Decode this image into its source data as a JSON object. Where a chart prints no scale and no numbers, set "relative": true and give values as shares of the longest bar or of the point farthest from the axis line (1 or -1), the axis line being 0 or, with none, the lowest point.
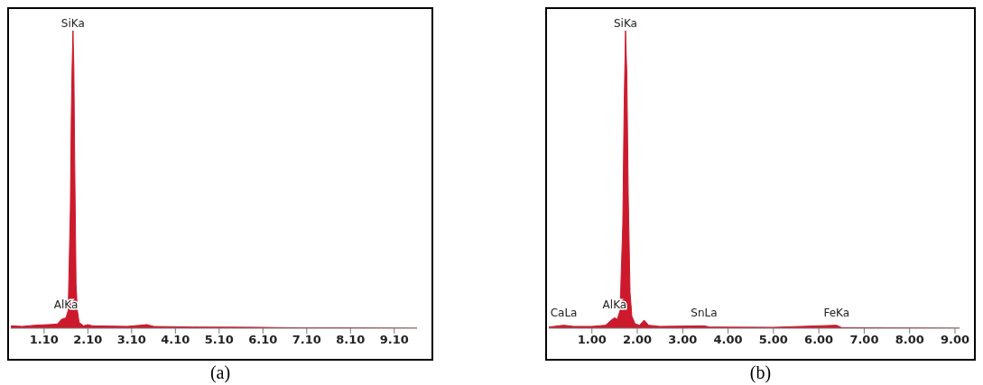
{
  "chart_data": [
    {
      "type": "area",
      "title": "(a)",
      "relative": true,
      "xlim": [
        0.34,
        9.62
      ],
      "xticks": [
        {
          "value": 1.1,
          "label": "1.10"
        },
        {
          "value": 2.1,
          "label": "2.10"
        },
        {
          "value": 3.1,
          "label": "3.10"
        },
        {
          "value": 4.1,
          "label": "4.10"
        },
        {
          "value": 5.1,
          "label": "5.10"
        },
        {
          "value": 6.1,
          "label": "6.10"
        },
        {
          "value": 7.1,
          "label": "7.10"
        },
        {
          "value": 8.1,
          "label": "8.10"
        },
        {
          "value": 9.1,
          "label": "9.10"
        }
      ],
      "series": [
        {
          "color": "#cc1a2c",
          "x": [
            0.34,
            0.6,
            0.9,
            1.2,
            1.4,
            1.5,
            1.6,
            1.65,
            1.7,
            1.72,
            1.74,
            1.76,
            1.78,
            1.8,
            1.83,
            1.86,
            1.9,
            2.0,
            2.1,
            2.2,
            3.0,
            3.3,
            3.45,
            3.6,
            4.5,
            6.0,
            7.0,
            8.0,
            9.62
          ],
          "values": [
            0.008,
            0.006,
            0.01,
            0.012,
            0.014,
            0.03,
            0.035,
            0.06,
            0.4,
            0.7,
            0.88,
            1.0,
            0.88,
            0.55,
            0.15,
            0.06,
            0.02,
            0.008,
            0.012,
            0.008,
            0.006,
            0.01,
            0.012,
            0.006,
            0.004,
            0.003,
            0.001,
            0.001,
            0.0
          ]
        }
      ],
      "annotations": [
        {
          "text": "SiKa",
          "x": 1.76,
          "y": 1.0
        },
        {
          "text": "AlKa",
          "x": 1.6,
          "y": 0.035
        }
      ]
    },
    {
      "type": "area",
      "title": "(b)",
      "relative": true,
      "xlim": [
        0.05,
        9.1
      ],
      "xticks": [
        {
          "value": 1,
          "label": "1.00"
        },
        {
          "value": 2,
          "label": "2.00"
        },
        {
          "value": 3,
          "label": "3.00"
        },
        {
          "value": 4,
          "label": "4.00"
        },
        {
          "value": 5,
          "label": "5.00"
        },
        {
          "value": 6,
          "label": "6.00"
        },
        {
          "value": 7,
          "label": "7.00"
        },
        {
          "value": 8,
          "label": "8.00"
        },
        {
          "value": 9,
          "label": "9.00"
        }
      ],
      "series": [
        {
          "color": "#cc1a2c",
          "x": [
            0.05,
            0.38,
            0.6,
            1.0,
            1.3,
            1.45,
            1.5,
            1.56,
            1.62,
            1.68,
            1.71,
            1.74,
            1.77,
            1.8,
            1.84,
            1.88,
            1.95,
            2.05,
            2.15,
            2.25,
            2.5,
            3.47,
            3.6,
            5.0,
            6.39,
            6.5,
            7.5,
            9.1
          ],
          "values": [
            0.004,
            0.01,
            0.006,
            0.006,
            0.01,
            0.03,
            0.035,
            0.03,
            0.06,
            0.35,
            0.75,
            1.0,
            0.85,
            0.45,
            0.12,
            0.04,
            0.015,
            0.01,
            0.027,
            0.01,
            0.006,
            0.008,
            0.004,
            0.003,
            0.01,
            0.002,
            0.001,
            0.0
          ]
        }
      ],
      "annotations": [
        {
          "text": "SiKa",
          "x": 1.74,
          "y": 1.0
        },
        {
          "text": "AlKa",
          "x": 1.5,
          "y": 0.035
        },
        {
          "text": "CaLa",
          "x": 0.38,
          "y": 0.01
        },
        {
          "text": "SnLa",
          "x": 3.47,
          "y": 0.008
        },
        {
          "text": "FeKa",
          "x": 6.39,
          "y": 0.01
        }
      ]
    }
  ]
}
